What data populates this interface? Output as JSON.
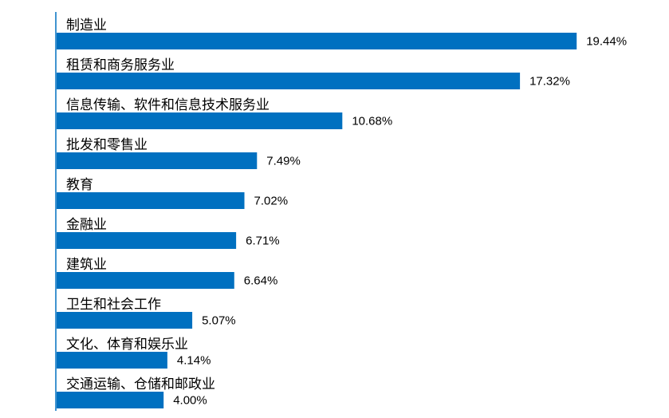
{
  "chart_data": {
    "type": "bar",
    "orientation": "horizontal",
    "color": "#0070c0",
    "categories": [
      "制造业",
      "租赁和商务服务业",
      "信息传输、软件和信息技术服务业",
      "批发和零售业",
      "教育",
      "金融业",
      "建筑业",
      "卫生和社会工作",
      "文化、体育和娱乐业",
      "交通运输、仓储和邮政业"
    ],
    "values": [
      19.44,
      17.32,
      10.68,
      7.49,
      7.02,
      6.71,
      6.64,
      5.07,
      4.14,
      4.0
    ],
    "value_labels": [
      "19.44%",
      "17.32%",
      "10.68%",
      "7.49%",
      "7.02%",
      "6.71%",
      "6.64%",
      "5.07%",
      "4.14%",
      "4.00%"
    ]
  }
}
